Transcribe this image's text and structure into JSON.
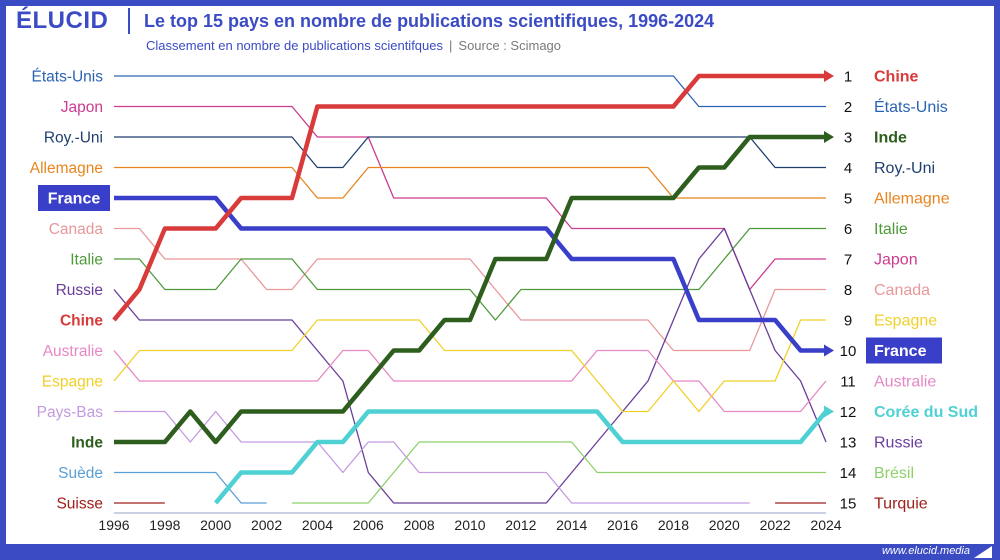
{
  "brand": "ÉLUCID",
  "title": "Le top 15 pays en nombre de publications scientifiques, 1996-2024",
  "subtitle": "Classement en nombre de publications scientifques",
  "source": "Source : Scimago",
  "footer_url": "www.elucid.media",
  "chart_data": {
    "type": "line",
    "subtype": "bump",
    "x": [
      1996,
      1997,
      1998,
      1999,
      2000,
      2001,
      2002,
      2003,
      2004,
      2005,
      2006,
      2007,
      2008,
      2009,
      2010,
      2011,
      2012,
      2013,
      2014,
      2015,
      2016,
      2017,
      2018,
      2019,
      2020,
      2021,
      2022,
      2023,
      2024
    ],
    "x_tick_labels": [
      "1996",
      "1998",
      "2000",
      "2002",
      "2004",
      "2006",
      "2008",
      "2010",
      "2012",
      "2014",
      "2016",
      "2018",
      "2020",
      "2022",
      "2024"
    ],
    "y_axis": "rank",
    "ylim": [
      1,
      15
    ],
    "right_ranks": [
      "1",
      "2",
      "3",
      "4",
      "5",
      "6",
      "7",
      "8",
      "9",
      "10",
      "11",
      "12",
      "13",
      "14",
      "15"
    ],
    "series": [
      {
        "name": "États-Unis",
        "color": "#2b63b4",
        "left_label": "États-Unis",
        "bold": false,
        "ranks": [
          1,
          1,
          1,
          1,
          1,
          1,
          1,
          1,
          1,
          1,
          1,
          1,
          1,
          1,
          1,
          1,
          1,
          1,
          1,
          1,
          1,
          1,
          1,
          2,
          2,
          2,
          2,
          2,
          2
        ]
      },
      {
        "name": "Japon",
        "color": "#cc3b8f",
        "left_label": "Japon",
        "bold": false,
        "ranks": [
          2,
          2,
          2,
          2,
          2,
          2,
          2,
          2,
          3,
          3,
          3,
          5,
          5,
          5,
          5,
          5,
          5,
          5,
          6,
          6,
          6,
          6,
          6,
          6,
          6,
          8,
          7,
          7,
          7
        ]
      },
      {
        "name": "Roy.-Uni",
        "color": "#1f3f6e",
        "left_label": "Roy.-Uni",
        "bold": false,
        "ranks": [
          3,
          3,
          3,
          3,
          3,
          3,
          3,
          3,
          4,
          4,
          3,
          3,
          3,
          3,
          3,
          3,
          3,
          3,
          3,
          3,
          3,
          3,
          3,
          3,
          3,
          3,
          4,
          4,
          4
        ]
      },
      {
        "name": "Allemagne",
        "color": "#e8851e",
        "left_label": "Allemagne",
        "bold": false,
        "ranks": [
          4,
          4,
          4,
          4,
          4,
          4,
          4,
          4,
          5,
          5,
          4,
          4,
          4,
          4,
          4,
          4,
          4,
          4,
          4,
          4,
          4,
          4,
          5,
          5,
          5,
          5,
          5,
          5,
          5
        ]
      },
      {
        "name": "France",
        "color": "#3a3fc9",
        "left_label": "France",
        "bold": true,
        "boxed": true,
        "ranks": [
          5,
          5,
          5,
          5,
          5,
          6,
          6,
          6,
          6,
          6,
          6,
          6,
          6,
          6,
          6,
          6,
          6,
          6,
          7,
          7,
          7,
          7,
          7,
          9,
          9,
          9,
          9,
          10,
          10
        ]
      },
      {
        "name": "Canada",
        "color": "#e8989a",
        "left_label": "Canada",
        "bold": false,
        "ranks": [
          6,
          6,
          7,
          7,
          7,
          7,
          8,
          8,
          7,
          7,
          7,
          7,
          7,
          7,
          7,
          8,
          9,
          9,
          9,
          9,
          9,
          9,
          10,
          10,
          10,
          10,
          8,
          8,
          8
        ]
      },
      {
        "name": "Italie",
        "color": "#4e9a3a",
        "left_label": "Italie",
        "bold": false,
        "ranks": [
          7,
          7,
          8,
          8,
          8,
          7,
          7,
          7,
          8,
          8,
          8,
          8,
          8,
          8,
          8,
          9,
          8,
          8,
          8,
          8,
          8,
          8,
          8,
          8,
          7,
          6,
          6,
          6,
          6
        ]
      },
      {
        "name": "Russie",
        "color": "#6a3d9a",
        "left_label": "Russie",
        "bold": false,
        "ranks": [
          8,
          9,
          9,
          9,
          9,
          9,
          9,
          9,
          10,
          11,
          14,
          15,
          15,
          15,
          15,
          15,
          15,
          15,
          14,
          13,
          12,
          11,
          9,
          7,
          6,
          8,
          10,
          11,
          13
        ]
      },
      {
        "name": "Chine",
        "color": "#d93a3a",
        "left_label": "Chine",
        "bold": true,
        "ranks": [
          9,
          8,
          6,
          6,
          6,
          5,
          5,
          5,
          2,
          2,
          2,
          2,
          2,
          2,
          2,
          2,
          2,
          2,
          2,
          2,
          2,
          2,
          2,
          1,
          1,
          1,
          1,
          1,
          1
        ]
      },
      {
        "name": "Australie",
        "color": "#e688c4",
        "left_label": "Australie",
        "bold": false,
        "ranks": [
          10,
          11,
          11,
          11,
          11,
          11,
          11,
          11,
          11,
          10,
          10,
          11,
          11,
          11,
          11,
          11,
          11,
          11,
          11,
          10,
          10,
          10,
          11,
          11,
          12,
          12,
          12,
          12,
          11
        ]
      },
      {
        "name": "Espagne",
        "color": "#f0d02a",
        "left_label": "Espagne",
        "bold": false,
        "ranks": [
          11,
          10,
          10,
          10,
          10,
          10,
          10,
          10,
          9,
          9,
          9,
          9,
          9,
          10,
          10,
          10,
          10,
          10,
          10,
          11,
          12,
          12,
          11,
          12,
          11,
          11,
          11,
          9,
          9
        ]
      },
      {
        "name": "Pays-Bas",
        "color": "#c49ae0",
        "left_label": "Pays-Bas",
        "bold": false,
        "ranks": [
          12,
          12,
          12,
          13,
          12,
          13,
          13,
          13,
          13,
          14,
          13,
          13,
          14,
          14,
          14,
          14,
          14,
          14,
          15,
          15,
          15,
          15,
          15,
          15,
          15,
          15,
          null,
          null,
          null
        ]
      },
      {
        "name": "Inde",
        "color": "#2e5e1e",
        "left_label": "Inde",
        "bold": true,
        "ranks": [
          13,
          13,
          13,
          12,
          13,
          12,
          12,
          12,
          12,
          12,
          11,
          10,
          10,
          9,
          9,
          7,
          7,
          7,
          5,
          5,
          5,
          5,
          5,
          4,
          4,
          3,
          3,
          3,
          3
        ]
      },
      {
        "name": "Suède",
        "color": "#5a9ed6",
        "left_label": "Suède",
        "bold": false,
        "ranks": [
          14,
          14,
          14,
          14,
          14,
          15,
          15,
          null,
          null,
          null,
          null,
          null,
          null,
          null,
          null,
          null,
          null,
          null,
          null,
          null,
          null,
          null,
          null,
          null,
          null,
          null,
          null,
          null,
          null
        ]
      },
      {
        "name": "Suisse",
        "color": "#a0201a",
        "left_label": "Suisse",
        "bold": false,
        "ranks": [
          15,
          15,
          15,
          null,
          null,
          null,
          null,
          null,
          null,
          null,
          null,
          null,
          null,
          null,
          null,
          null,
          null,
          null,
          null,
          null,
          null,
          null,
          null,
          null,
          null,
          null,
          null,
          null,
          null
        ]
      },
      {
        "name": "Corée du Sud",
        "color": "#4fd1d4",
        "bold": true,
        "ranks": [
          null,
          null,
          null,
          null,
          15,
          14,
          14,
          14,
          13,
          13,
          12,
          12,
          12,
          12,
          12,
          12,
          12,
          12,
          12,
          12,
          13,
          13,
          13,
          13,
          13,
          13,
          13,
          13,
          12
        ]
      },
      {
        "name": "Brésil",
        "color": "#8ed06a",
        "bold": false,
        "ranks": [
          null,
          null,
          null,
          null,
          null,
          null,
          null,
          15,
          15,
          15,
          15,
          14,
          13,
          13,
          13,
          13,
          13,
          13,
          13,
          14,
          14,
          14,
          14,
          14,
          14,
          14,
          14,
          14,
          14
        ]
      },
      {
        "name": "Turquie",
        "color": "#a0201a",
        "bold": false,
        "ranks": [
          null,
          null,
          null,
          null,
          null,
          null,
          null,
          null,
          null,
          null,
          null,
          null,
          null,
          null,
          null,
          null,
          null,
          null,
          null,
          null,
          null,
          null,
          null,
          null,
          null,
          null,
          15,
          15,
          15
        ]
      }
    ],
    "right_labels": [
      {
        "rank": 1,
        "text": "Chine",
        "series": "Chine",
        "bold": true
      },
      {
        "rank": 2,
        "text": "États-Unis",
        "series": "États-Unis",
        "bold": false
      },
      {
        "rank": 3,
        "text": "Inde",
        "series": "Inde",
        "bold": true
      },
      {
        "rank": 4,
        "text": "Roy.-Uni",
        "series": "Roy.-Uni",
        "bold": false
      },
      {
        "rank": 5,
        "text": "Allemagne",
        "series": "Allemagne",
        "bold": false
      },
      {
        "rank": 6,
        "text": "Italie",
        "series": "Italie",
        "bold": false
      },
      {
        "rank": 7,
        "text": "Japon",
        "series": "Japon",
        "bold": false
      },
      {
        "rank": 8,
        "text": "Canada",
        "series": "Canada",
        "bold": false
      },
      {
        "rank": 9,
        "text": "Espagne",
        "series": "Espagne",
        "bold": false
      },
      {
        "rank": 10,
        "text": "France",
        "series": "France",
        "bold": false,
        "boxed": true
      },
      {
        "rank": 11,
        "text": "Australie",
        "series": "Australie",
        "bold": false
      },
      {
        "rank": 12,
        "text": "Corée du Sud",
        "series": "Corée du Sud",
        "bold": true
      },
      {
        "rank": 13,
        "text": "Russie",
        "series": "Russie",
        "bold": false
      },
      {
        "rank": 14,
        "text": "Brésil",
        "series": "Brésil",
        "bold": false
      },
      {
        "rank": 15,
        "text": "Turquie",
        "series": "Turquie",
        "bold": false
      }
    ],
    "highlighted": [
      "Chine",
      "Inde",
      "France",
      "Corée du Sud"
    ]
  }
}
